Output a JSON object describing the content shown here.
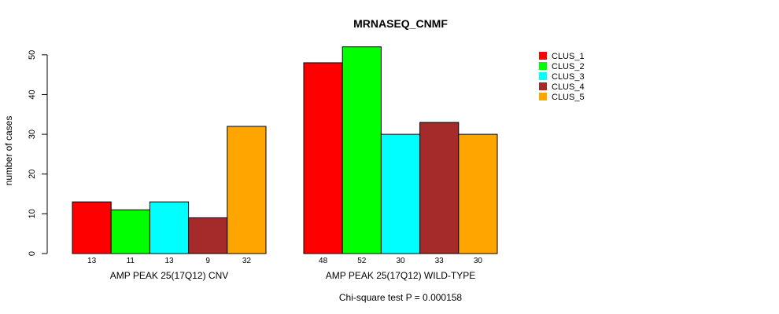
{
  "chart_data": {
    "type": "bar",
    "title": "MRNASEQ_CNMF",
    "ylabel": "number of cases",
    "ylim": [
      0,
      52
    ],
    "yticks": [
      0,
      10,
      20,
      30,
      40,
      50
    ],
    "legend_position": "top-right",
    "grid": false,
    "series": [
      {
        "name": "CLUS_1",
        "color": "#ff0000"
      },
      {
        "name": "CLUS_2",
        "color": "#00ff00"
      },
      {
        "name": "CLUS_3",
        "color": "#00ffff"
      },
      {
        "name": "CLUS_4",
        "color": "#a52a2a"
      },
      {
        "name": "CLUS_5",
        "color": "#ffa500"
      }
    ],
    "groups": [
      {
        "label": "AMP PEAK 25(17Q12) CNV",
        "values": [
          13,
          11,
          13,
          9,
          32
        ]
      },
      {
        "label": "AMP PEAK 25(17Q12) WILD-TYPE",
        "values": [
          48,
          52,
          30,
          33,
          30
        ]
      }
    ],
    "annotation": "Chi-square test P = 0.000158"
  }
}
